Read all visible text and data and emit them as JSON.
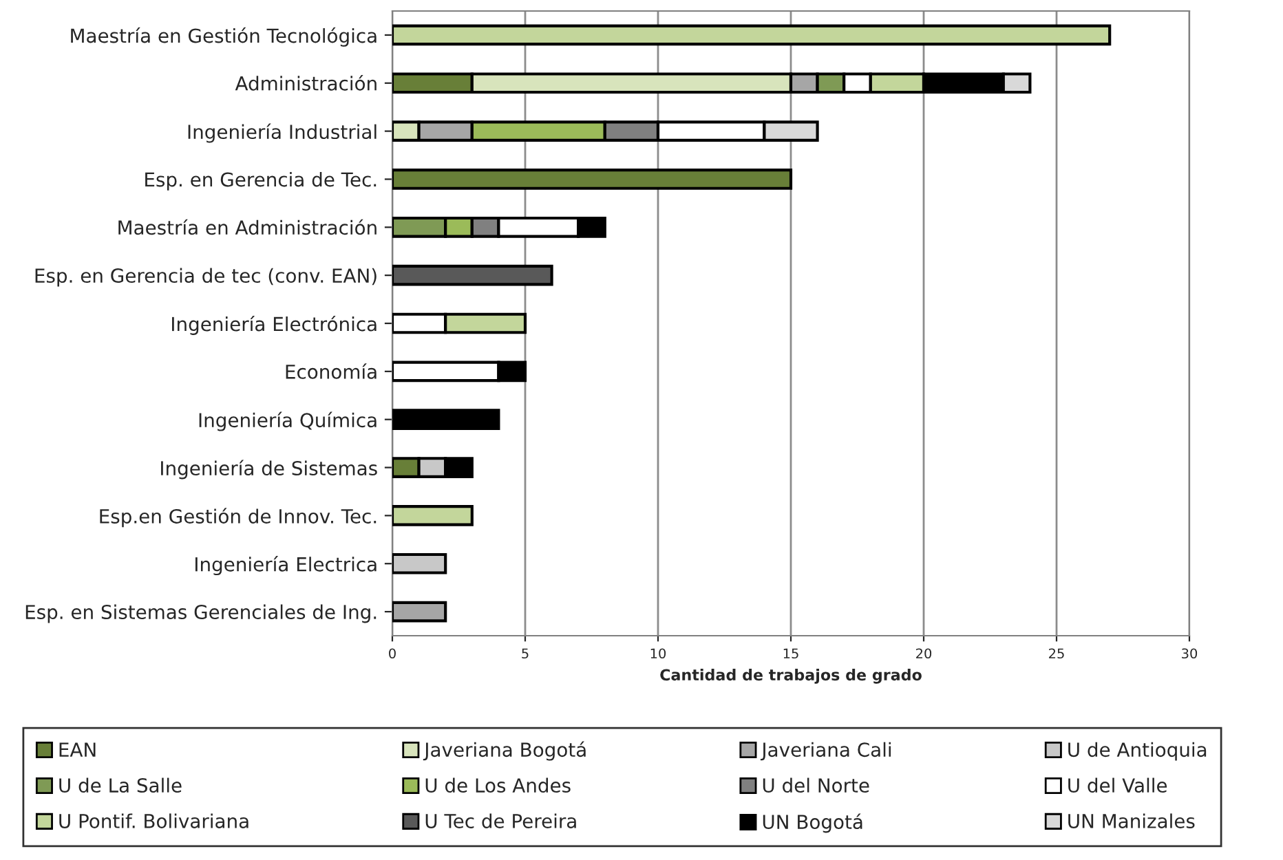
{
  "chart_data": {
    "type": "bar",
    "orientation": "horizontal",
    "stacked": true,
    "xlabel": "Cantidad de trabajos de grado",
    "categories": [
      "Maestría en Gestión Tecnológica",
      "Administración",
      "Ingeniería Industrial",
      "Esp. en Gerencia de Tec.",
      "Maestría en Administración",
      "Esp. en Gerencia de tec (conv. EAN)",
      "Ingeniería Electrónica",
      "Economía",
      "Ingeniería Química",
      "Ingeniería de Sistemas",
      "Esp.en Gestión de Innov. Tec.",
      "Ingeniería Electrica",
      "Esp. en Sistemas Gerenciales de Ing."
    ],
    "series": [
      {
        "name": "EAN",
        "color": "#687f38",
        "values": [
          null,
          3,
          null,
          15,
          null,
          null,
          null,
          null,
          null,
          1,
          null,
          null,
          null
        ]
      },
      {
        "name": "Javeriana Bogotá",
        "color": "#d8e4bc",
        "values": [
          null,
          12,
          1,
          null,
          null,
          null,
          null,
          null,
          null,
          null,
          null,
          null,
          null
        ]
      },
      {
        "name": "Javeriana Cali",
        "color": "#a6a6a6",
        "values": [
          null,
          1,
          2,
          null,
          null,
          null,
          null,
          null,
          null,
          null,
          null,
          null,
          2
        ]
      },
      {
        "name": "U de Antioquia",
        "color": "#c8c8c8",
        "values": [
          null,
          null,
          null,
          null,
          null,
          null,
          null,
          null,
          null,
          1,
          null,
          2,
          null
        ]
      },
      {
        "name": "U de La Salle",
        "color": "#7f9a55",
        "values": [
          null,
          1,
          null,
          null,
          2,
          null,
          null,
          null,
          null,
          null,
          null,
          null,
          null
        ]
      },
      {
        "name": "U de Los Andes",
        "color": "#9bbb59",
        "values": [
          null,
          null,
          5,
          null,
          1,
          null,
          null,
          null,
          null,
          null,
          null,
          null,
          null
        ]
      },
      {
        "name": "U del Norte",
        "color": "#808080",
        "values": [
          null,
          null,
          2,
          null,
          1,
          null,
          null,
          null,
          null,
          null,
          null,
          null,
          null
        ]
      },
      {
        "name": "U del Valle",
        "color": "#ffffff",
        "values": [
          null,
          1,
          4,
          null,
          3,
          null,
          2,
          4,
          null,
          null,
          null,
          null,
          null
        ]
      },
      {
        "name": "U Pontif. Bolivariana",
        "color": "#c3d69b",
        "values": [
          27,
          2,
          null,
          null,
          null,
          null,
          3,
          null,
          null,
          null,
          3,
          null,
          null
        ]
      },
      {
        "name": "U Tec de Pereira",
        "color": "#595959",
        "values": [
          null,
          null,
          null,
          null,
          null,
          6,
          null,
          null,
          null,
          null,
          null,
          null,
          null
        ]
      },
      {
        "name": "UN Bogotá",
        "color": "#000000",
        "values": [
          null,
          3,
          null,
          null,
          1,
          null,
          null,
          1,
          4,
          1,
          null,
          null,
          null
        ]
      },
      {
        "name": "UN Manizales",
        "color": "#d9d9d9",
        "values": [
          null,
          1,
          2,
          null,
          null,
          null,
          null,
          null,
          null,
          null,
          null,
          null,
          null
        ]
      }
    ],
    "xlim": [
      0,
      30
    ],
    "xticks": [
      0,
      5,
      10,
      15,
      20,
      25,
      30
    ],
    "grid": "x",
    "legend": "bottom"
  }
}
